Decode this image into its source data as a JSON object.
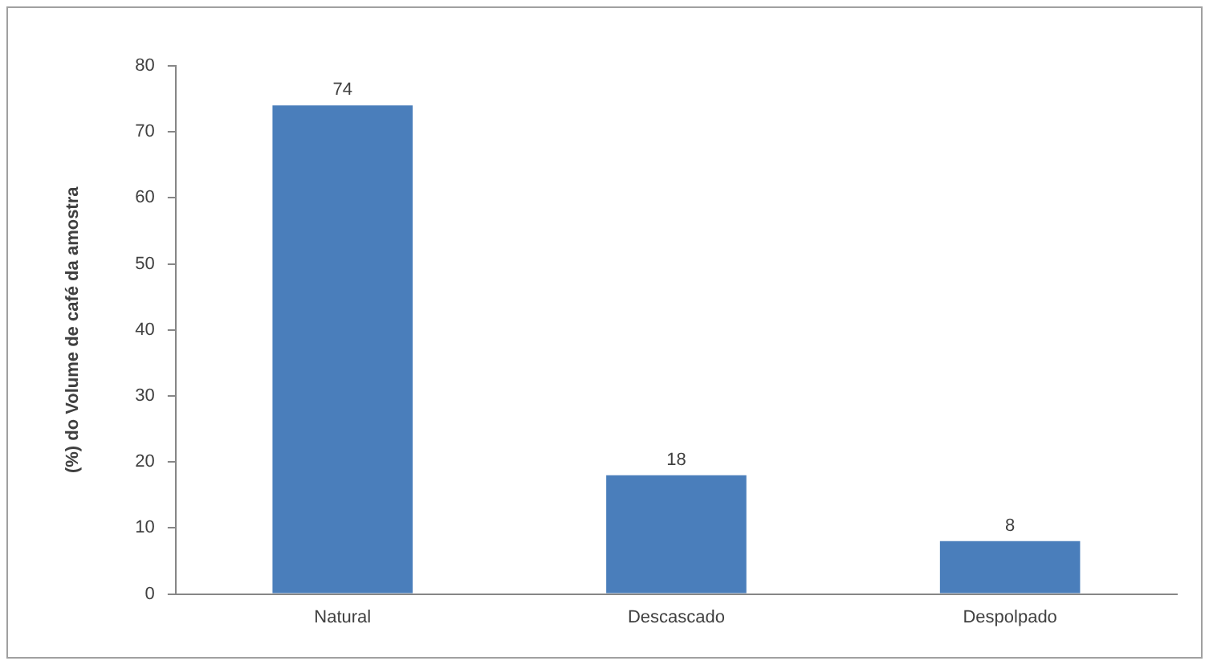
{
  "chart_data": {
    "type": "bar",
    "ylabel": "(%) do Volume de café da amostra",
    "categories": [
      "Natural",
      "Descascado",
      "Despolpado"
    ],
    "values": [
      74,
      18,
      8
    ],
    "color": "#4a7ebb",
    "ylim": [
      0,
      80
    ],
    "yticks": [
      0,
      10,
      20,
      30,
      40,
      50,
      60,
      70,
      80
    ],
    "grid": false,
    "legend": false,
    "data_labels": true
  }
}
